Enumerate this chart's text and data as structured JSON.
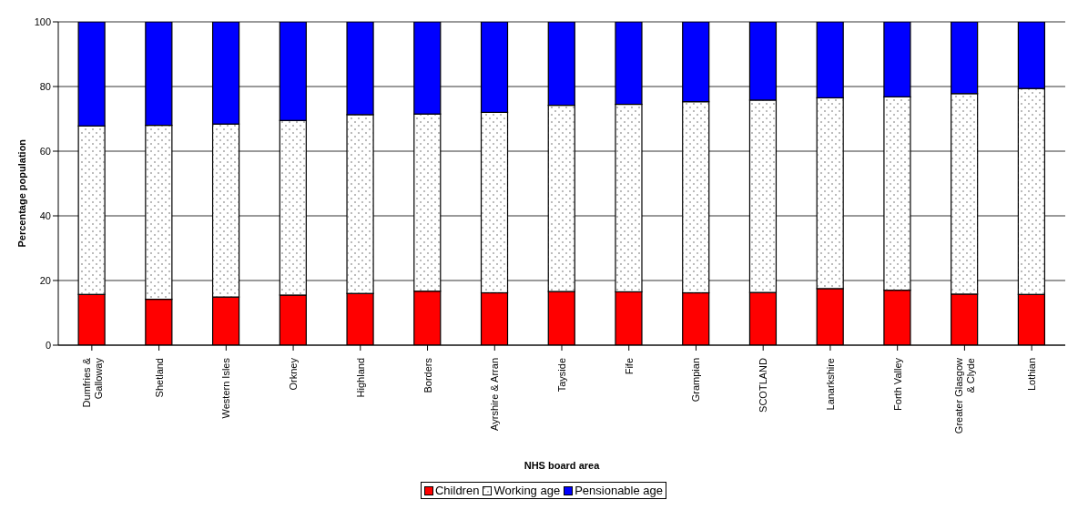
{
  "chart_data": {
    "type": "bar",
    "stacked": true,
    "xlabel": "NHS board area",
    "ylabel": "Percentage population",
    "categories": [
      "Dumfries & Galloway",
      "Shetland",
      "Western Isles",
      "Orkney",
      "Highland",
      "Borders",
      "Ayrshire & Arran",
      "Tayside",
      "Fife",
      "Grampian",
      "SCOTLAND",
      "Lanarkshire",
      "Forth Valley",
      "Greater Glasgow & Clyde",
      "Lothian"
    ],
    "series": [
      {
        "name": "Children",
        "color": "#ff0000",
        "values": [
          15.7,
          14.2,
          14.9,
          15.5,
          16.0,
          16.7,
          16.2,
          16.6,
          16.5,
          16.2,
          16.3,
          17.5,
          17.0,
          15.8,
          15.7
        ]
      },
      {
        "name": "Working age",
        "color": "#ffffff",
        "values": [
          52.1,
          53.8,
          53.5,
          54.0,
          55.3,
          54.8,
          55.8,
          57.6,
          58.0,
          59.1,
          59.5,
          59.0,
          59.8,
          62.0,
          63.7
        ]
      },
      {
        "name": "Pensionable age",
        "color": "#0000ff",
        "values": [
          32.2,
          32.0,
          31.6,
          30.5,
          28.7,
          28.5,
          28.0,
          25.8,
          25.5,
          24.7,
          24.2,
          23.5,
          23.2,
          22.2,
          20.6
        ]
      }
    ],
    "ylim": [
      0,
      100
    ],
    "yticks": [
      0,
      20,
      40,
      60,
      80,
      100
    ],
    "grid": "y",
    "legend": "bottom"
  }
}
